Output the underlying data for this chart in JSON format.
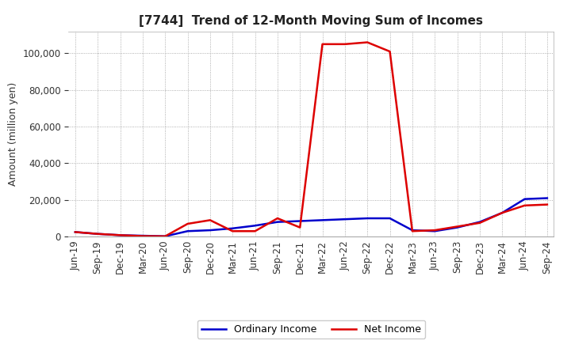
{
  "title": "[7744]  Trend of 12-Month Moving Sum of Incomes",
  "ylabel": "Amount (million yen)",
  "title_fontsize": 11,
  "label_fontsize": 9,
  "tick_fontsize": 8.5,
  "legend_fontsize": 9,
  "background_color": "#ffffff",
  "grid_color": "#999999",
  "plot_bg_color": "#ffffff",
  "ordinary_income_color": "#0000cc",
  "net_income_color": "#dd0000",
  "x_labels": [
    "Jun-19",
    "Sep-19",
    "Dec-19",
    "Mar-20",
    "Jun-20",
    "Sep-20",
    "Dec-20",
    "Mar-21",
    "Jun-21",
    "Sep-21",
    "Dec-21",
    "Mar-22",
    "Jun-22",
    "Sep-22",
    "Dec-22",
    "Mar-23",
    "Jun-23",
    "Sep-23",
    "Dec-23",
    "Mar-24",
    "Jun-24",
    "Sep-24"
  ],
  "ordinary_income": [
    2500,
    1500,
    800,
    500,
    200,
    3000,
    3500,
    4500,
    6000,
    8000,
    8500,
    9000,
    9500,
    10000,
    10000,
    3500,
    3000,
    5000,
    8000,
    13000,
    20500,
    21000
  ],
  "net_income": [
    2500,
    1500,
    800,
    300,
    200,
    7000,
    9000,
    3000,
    3000,
    10000,
    5000,
    105000,
    105000,
    106000,
    101000,
    3000,
    3500,
    5500,
    7500,
    13000,
    17000,
    17500
  ],
  "ylim": [
    0,
    112000
  ],
  "yticks": [
    0,
    20000,
    40000,
    60000,
    80000,
    100000
  ],
  "line_width": 1.8
}
